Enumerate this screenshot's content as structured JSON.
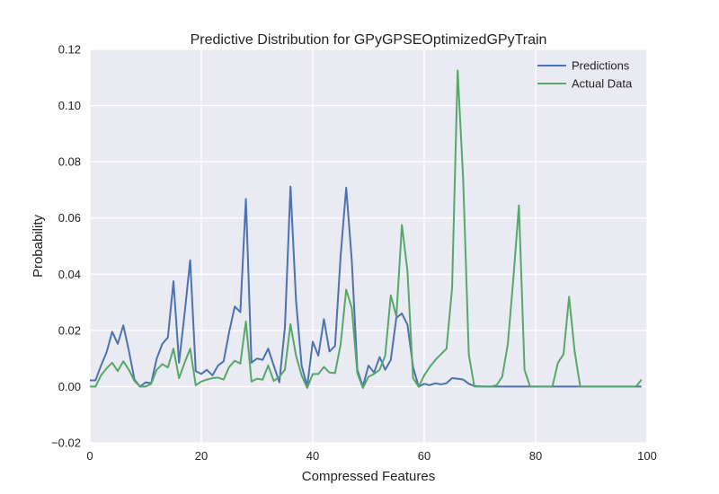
{
  "chart_data": {
    "type": "line",
    "title": "Predictive Distribution for GPyGPSEOptimizedGPyTrain",
    "xlabel": "Compressed Features",
    "ylabel": "Probability",
    "xlim": [
      0,
      100
    ],
    "ylim": [
      -0.02,
      0.12
    ],
    "xticks": [
      0,
      20,
      40,
      60,
      80,
      100
    ],
    "yticks": [
      -0.02,
      0.0,
      0.02,
      0.04,
      0.06,
      0.08,
      0.1,
      0.12
    ],
    "xtick_labels": [
      "0",
      "20",
      "40",
      "60",
      "80",
      "100"
    ],
    "ytick_labels": [
      "−0.02",
      "0.00",
      "0.02",
      "0.04",
      "0.06",
      "0.08",
      "0.10",
      "0.12"
    ],
    "grid": true,
    "legend_position": "top-right",
    "x": [
      0,
      1,
      2,
      3,
      4,
      5,
      6,
      7,
      8,
      9,
      10,
      11,
      12,
      13,
      14,
      15,
      16,
      17,
      18,
      19,
      20,
      21,
      22,
      23,
      24,
      25,
      26,
      27,
      28,
      29,
      30,
      31,
      32,
      33,
      34,
      35,
      36,
      37,
      38,
      39,
      40,
      41,
      42,
      43,
      44,
      45,
      46,
      47,
      48,
      49,
      50,
      51,
      52,
      53,
      54,
      55,
      56,
      57,
      58,
      59,
      60,
      61,
      62,
      63,
      64,
      65,
      66,
      67,
      68,
      69,
      70,
      71,
      72,
      73,
      74,
      75,
      76,
      77,
      78,
      79,
      80,
      81,
      82,
      83,
      84,
      85,
      86,
      87,
      88,
      89,
      90,
      91,
      92,
      93,
      94,
      95,
      96,
      97,
      98,
      99
    ],
    "series": [
      {
        "name": "Predictions",
        "color": "#4c72b0",
        "values": [
          0.0022,
          0.0022,
          0.0075,
          0.0122,
          0.0195,
          0.0152,
          0.0218,
          0.0128,
          0.0025,
          0.0,
          0.0015,
          0.0012,
          0.01,
          0.0152,
          0.0175,
          0.0375,
          0.0085,
          0.026,
          0.045,
          0.0055,
          0.0045,
          0.006,
          0.004,
          0.0075,
          0.009,
          0.0195,
          0.0285,
          0.0265,
          0.0668,
          0.0085,
          0.01,
          0.0095,
          0.0135,
          0.0075,
          0.0015,
          0.021,
          0.0712,
          0.0305,
          0.0075,
          0.0,
          0.016,
          0.011,
          0.024,
          0.0125,
          0.0145,
          0.0465,
          0.0708,
          0.045,
          0.006,
          0.0,
          0.0075,
          0.005,
          0.0105,
          0.006,
          0.0095,
          0.0245,
          0.026,
          0.022,
          0.007,
          0.0,
          0.001,
          0.0005,
          0.0012,
          0.0008,
          0.0012,
          0.003,
          0.0028,
          0.0025,
          0.001,
          0.0002,
          0.0001,
          0.0,
          0.0,
          0.0,
          0.0,
          0.0,
          0.0,
          0.0,
          0.0,
          0.0,
          0.0,
          0.0,
          0.0,
          0.0,
          0.0,
          0.0,
          0.0,
          0.0,
          0.0,
          0.0,
          0.0,
          0.0,
          0.0,
          0.0,
          0.0,
          0.0,
          0.0,
          0.0,
          0.0,
          0.0
        ]
      },
      {
        "name": "Actual Data",
        "color": "#55a868",
        "values": [
          0.0,
          0.0,
          0.004,
          0.0065,
          0.0085,
          0.0055,
          0.009,
          0.006,
          0.002,
          0.0,
          0.0,
          0.001,
          0.006,
          0.008,
          0.0068,
          0.0135,
          0.003,
          0.0085,
          0.0135,
          0.0005,
          0.0018,
          0.0025,
          0.003,
          0.0032,
          0.0025,
          0.007,
          0.0092,
          0.0082,
          0.0232,
          0.0018,
          0.0028,
          0.0025,
          0.0075,
          0.002,
          0.0035,
          0.006,
          0.0222,
          0.011,
          0.004,
          -0.0005,
          0.0045,
          0.0045,
          0.007,
          0.005,
          0.0048,
          0.015,
          0.0345,
          0.028,
          0.0048,
          -0.0005,
          0.0035,
          0.0045,
          0.006,
          0.011,
          0.0325,
          0.025,
          0.0575,
          0.041,
          0.003,
          0.0,
          0.004,
          0.007,
          0.0095,
          0.0115,
          0.0135,
          0.035,
          0.1125,
          0.0735,
          0.0115,
          0.0,
          0.0,
          0.0,
          0.0,
          0.0005,
          0.0035,
          0.015,
          0.0385,
          0.0645,
          0.006,
          0.0,
          0.0,
          0.0,
          0.0,
          0.0,
          0.0085,
          0.0115,
          0.032,
          0.0125,
          0.0,
          0.0,
          0.0,
          0.0,
          0.0,
          0.0,
          0.0,
          0.0,
          0.0,
          0.0,
          0.0,
          0.0025
        ]
      }
    ]
  }
}
